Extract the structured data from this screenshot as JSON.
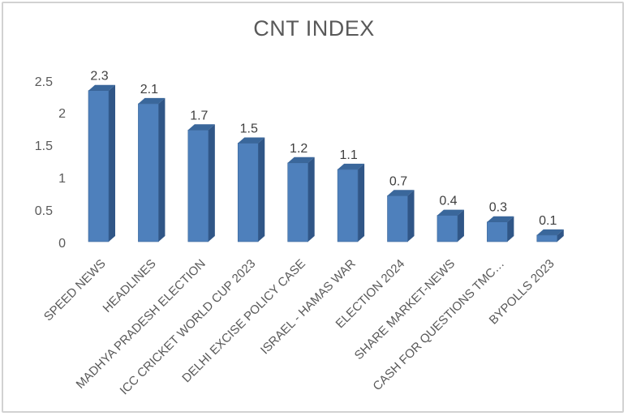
{
  "chart_data": {
    "type": "bar",
    "style": "3d-box-columns",
    "title": "CNT INDEX",
    "categories": [
      "SPEED NEWS",
      "HEADLINES",
      "MADHYA PRADESH ELECTION",
      "ICC CRICKET WORLD CUP 2023",
      "DELHI EXCISE POLICY CASE",
      "ISRAEL - HAMAS WAR",
      "ELECTION 2024",
      "SHARE MARKET-NEWS",
      "CASH FOR QUESTIONS TMC…",
      "BYPOLLS 2023"
    ],
    "values": [
      2.3,
      2.1,
      1.7,
      1.5,
      1.2,
      1.1,
      0.7,
      0.4,
      0.3,
      0.1
    ],
    "data_labels": [
      "2.3",
      "2.1",
      "1.7",
      "1.5",
      "1.2",
      "1.1",
      "0.7",
      "0.4",
      "0.3",
      "0.1"
    ],
    "yticks": [
      0,
      0.5,
      1,
      1.5,
      2,
      2.5
    ],
    "ytick_labels": [
      "0",
      "0.5",
      "1",
      "1.5",
      "2",
      "2.5"
    ],
    "ylim": [
      0,
      2.5
    ],
    "xlabel": "",
    "ylabel": "",
    "grid": false,
    "legend": false,
    "colors": {
      "bar_front": "#4e80bc",
      "bar_top": "#3a679b",
      "bar_side": "#305687",
      "bar_outline": "#3a6496",
      "data_label": "#3f3f3f",
      "axis_label": "#595959",
      "title": "#595959",
      "frame_border": "#d2d2d2",
      "background": "#ffffff"
    }
  }
}
